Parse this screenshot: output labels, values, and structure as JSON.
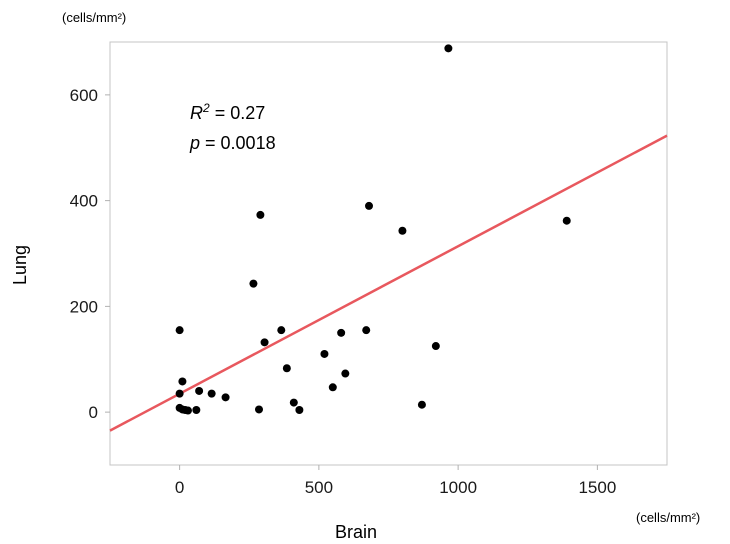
{
  "chart_data": {
    "type": "scatter",
    "title": "",
    "xlabel": "Brain",
    "ylabel": "Lung",
    "x_unit": "(cells/mm²)",
    "y_unit": "(cells/mm²)",
    "xlim": [
      -250,
      1750
    ],
    "ylim": [
      -100,
      700
    ],
    "x_ticks": [
      0,
      500,
      1000,
      1500
    ],
    "y_ticks": [
      0,
      200,
      400,
      600
    ],
    "grid": false,
    "annotations": {
      "r2_symbol": "R",
      "r2_sup": "2",
      "r2_value": " = 0.27",
      "p_symbol": "p",
      "p_value": " = 0.0018"
    },
    "fit_line": {
      "color": "#e8585e",
      "points": [
        [
          -250,
          -35
        ],
        [
          1750,
          523
        ]
      ]
    },
    "point_color": "#000000",
    "points": [
      [
        965,
        688
      ],
      [
        290,
        373
      ],
      [
        680,
        390
      ],
      [
        800,
        343
      ],
      [
        1390,
        362
      ],
      [
        265,
        243
      ],
      [
        0,
        155
      ],
      [
        365,
        155
      ],
      [
        580,
        150
      ],
      [
        670,
        155
      ],
      [
        305,
        132
      ],
      [
        920,
        125
      ],
      [
        520,
        110
      ],
      [
        385,
        83
      ],
      [
        595,
        73
      ],
      [
        10,
        58
      ],
      [
        550,
        47
      ],
      [
        70,
        40
      ],
      [
        115,
        35
      ],
      [
        0,
        35
      ],
      [
        165,
        28
      ],
      [
        410,
        18
      ],
      [
        870,
        14
      ],
      [
        0,
        8
      ],
      [
        10,
        5
      ],
      [
        20,
        4
      ],
      [
        30,
        3
      ],
      [
        60,
        4
      ],
      [
        285,
        5
      ],
      [
        430,
        4
      ]
    ]
  }
}
